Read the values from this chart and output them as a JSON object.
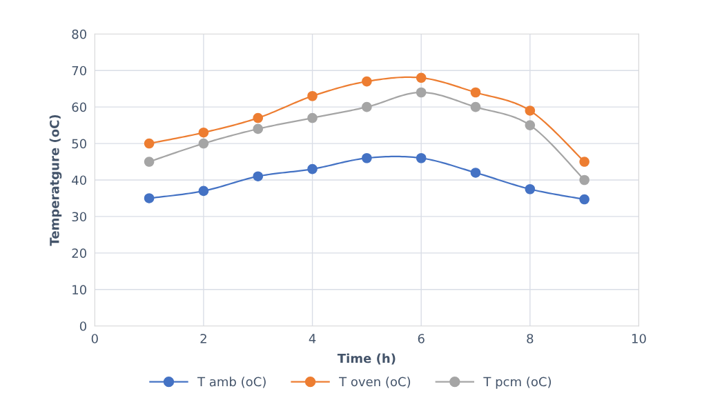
{
  "chart_data": {
    "type": "line",
    "xlabel": "Time (h)",
    "ylabel": "Temperatgure (oC)",
    "x": [
      1,
      2,
      3,
      4,
      5,
      6,
      7,
      8,
      9
    ],
    "series": [
      {
        "name": "T amb (oC)",
        "color": "#4472c4",
        "values": [
          35,
          37,
          41,
          43,
          46,
          46,
          42,
          37.5,
          34.7
        ]
      },
      {
        "name": "T oven (oC)",
        "color": "#ed7d31",
        "values": [
          50,
          53,
          57,
          63,
          67,
          68,
          64,
          59,
          45
        ]
      },
      {
        "name": "T pcm (oC)",
        "color": "#a5a5a5",
        "values": [
          45,
          50,
          54,
          57,
          60,
          64,
          60,
          55,
          40
        ]
      }
    ],
    "xlim": [
      0,
      10
    ],
    "xticks": [
      0,
      2,
      4,
      6,
      8,
      10
    ],
    "ylim": [
      0,
      80
    ],
    "yticks": [
      0,
      10,
      20,
      30,
      40,
      50,
      60,
      70,
      80
    ],
    "grid": true,
    "legend": "bottom",
    "marker": "circle",
    "line_style": "solid"
  }
}
